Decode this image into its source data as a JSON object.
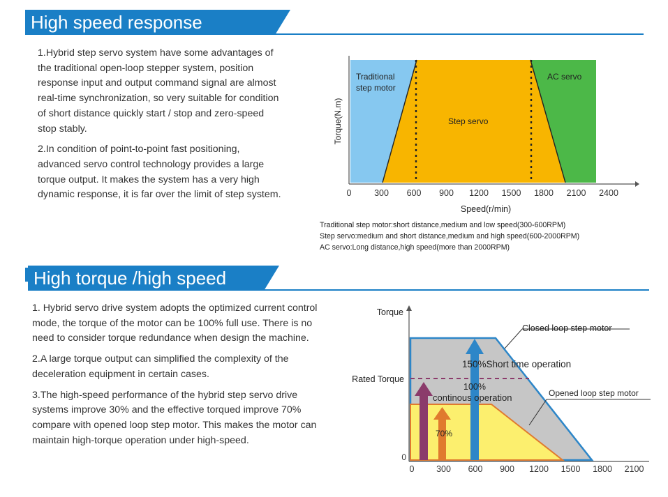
{
  "section1": {
    "title": "High speed response",
    "p1": "1.Hybrid step servo system have some advantages of the traditional open-loop stepper system, position response input and output command signal are almost real-time synchronization, so very suitable for condition of short distance quickly start / stop and zero-speed stop stably.",
    "p2": "2.In condition of point-to-point fast positioning, advanced servo control technology provides a large torque output. It makes the system has a very high dynamic response, it is far over the limit of step system."
  },
  "chart1": {
    "ylabel": "Torque(N.m)",
    "xlabel": "Speed(r/min)",
    "region_traditional_line1": "Traditional",
    "region_traditional_line2": "step motor",
    "region_step": "Step servo",
    "region_ac": "AC servo",
    "note1": "Traditional step motor:short distance,medium and low speed(300-600RPM)",
    "note2": "Step servo:medium and short distance,medium and high speed(600-2000RPM)",
    "note3": "AC servo:Long distance,high speed(more  than 2000RPM)"
  },
  "section2": {
    "title": "High torque /high speed",
    "p1": "1. Hybrid servo drive system adopts the optimized current control mode, the torque of the motor can be 100% full use. There is no need to consider torque redundance when design the machine.",
    "p2": "2.A large torque output can simplified the complexity of the deceleration equipment in certain cases.",
    "p3": "3.The high-speed performance of the hybrid step servo drive systems improve 30% and the effective torqued improve 70% compare with opened loop step motor. This makes the motor can maintain high-torque operation under high-speed."
  },
  "chart2": {
    "ylabel": "Torque",
    "rated": "Rated Torque",
    "zero": "0",
    "closed_label": "Closed loop step motor",
    "opened_label": "Opened loop step motor",
    "short_time": "150%Short  time operation",
    "cont_line1": "100%",
    "cont_line2": "continous operation",
    "pct70": "70%"
  },
  "chart_data": [
    {
      "type": "area",
      "xlabel": "Speed(r/min)",
      "ylabel": "Torque(N.m)",
      "x_ticks": [
        "0",
        "300",
        "600",
        "900",
        "1200",
        "1500",
        "1800",
        "2100",
        "2400"
      ],
      "series": [
        {
          "name": "Traditional step motor",
          "x_range": [
            0,
            600
          ],
          "color": "#7dc5f0"
        },
        {
          "name": "Step servo",
          "x_range": [
            300,
            2000
          ],
          "color": "#f8b500"
        },
        {
          "name": "AC servo",
          "x_range": [
            1800,
            2300
          ],
          "color": "#4cb848"
        }
      ]
    },
    {
      "type": "area",
      "ylabel": "Torque",
      "x_ticks": [
        "0",
        "300",
        "600",
        "900",
        "1200",
        "1500",
        "1800",
        "2100"
      ],
      "series": [
        {
          "name": "Closed loop step motor",
          "points": [
            [
              0,
              150
            ],
            [
              800,
              150
            ],
            [
              1700,
              0
            ]
          ],
          "color": "#c8c8c8"
        },
        {
          "name": "Opened loop step motor",
          "points": [
            [
              0,
              100
            ],
            [
              800,
              100
            ],
            [
              1500,
              0
            ]
          ],
          "color": "#fef46e"
        }
      ],
      "annotations": [
        "150%Short  time operation",
        "100% continous operation",
        "70%"
      ]
    }
  ]
}
